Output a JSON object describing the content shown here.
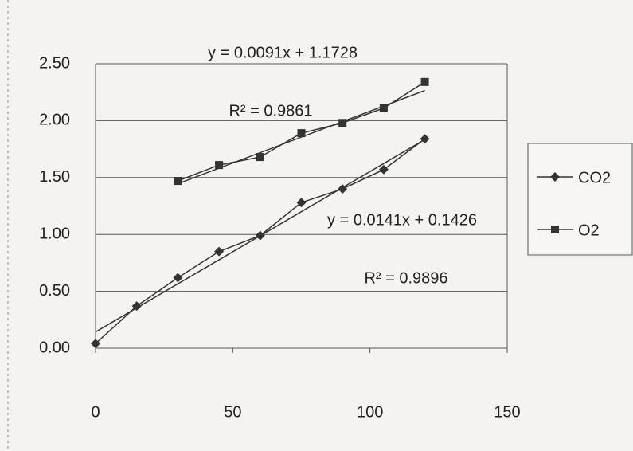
{
  "chart_data": {
    "type": "line",
    "x": [
      0,
      15,
      30,
      45,
      60,
      75,
      90,
      105,
      120
    ],
    "series": [
      {
        "name": "CO2",
        "color": "#333333",
        "marker": "diamond",
        "values": [
          0.04,
          0.37,
          0.62,
          0.85,
          0.99,
          1.28,
          1.4,
          1.57,
          1.84
        ],
        "trendline": {
          "slope": 0.0141,
          "intercept": 0.1426,
          "equation": "y = 0.0141x + 0.1426",
          "r2_label": "R² = 0.9896"
        }
      },
      {
        "name": "O2",
        "color": "#333333",
        "marker": "square",
        "values": [
          null,
          null,
          1.47,
          1.61,
          1.68,
          1.89,
          1.98,
          2.11,
          2.34
        ],
        "trendline": {
          "slope": 0.0091,
          "intercept": 1.1728,
          "equation": "y = 0.0091x + 1.1728",
          "r2_label": "R² = 0.9861"
        }
      }
    ],
    "xlim": [
      0,
      150
    ],
    "xticks": [
      0,
      50,
      100,
      150
    ],
    "ylim": [
      0,
      2.5
    ],
    "yticks": [
      {
        "value": 0,
        "label": "0.00"
      },
      {
        "value": 0.5,
        "label": "0.50"
      },
      {
        "value": 1,
        "label": "1.00"
      },
      {
        "value": 1.5,
        "label": "1.50"
      },
      {
        "value": 2,
        "label": "2.00"
      },
      {
        "value": 2.5,
        "label": "2.50"
      }
    ],
    "grid": true,
    "legend": "right"
  }
}
